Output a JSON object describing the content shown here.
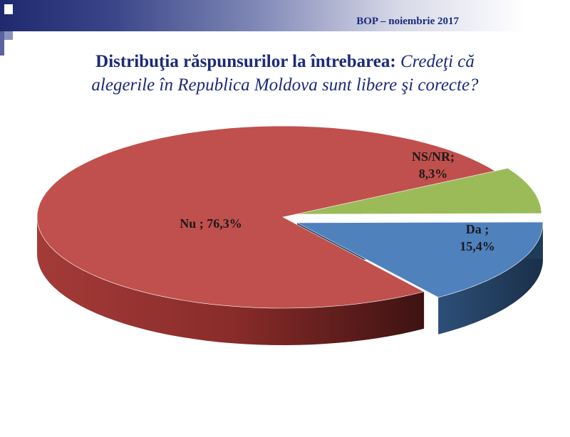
{
  "header": {
    "tag": "BOP – noiembrie 2017"
  },
  "title": {
    "bold": "Distribuţia răspunsurilor la întrebarea:",
    "italic_line1": "Credeţi că",
    "italic_line2": "alegerile în Republica Moldova sunt libere şi corecte?"
  },
  "colors": {
    "header_dark": "#1f2a6e",
    "title_text": "#1c2a7a"
  },
  "chart_data": {
    "type": "pie",
    "style": "3d-exploded",
    "slices": [
      {
        "name": "Nu",
        "label_line1": "Nu ; 76,3%",
        "label_line2": "",
        "value": 76.3,
        "color": "#c0504d",
        "side": "#6b1f1f"
      },
      {
        "name": "Da",
        "label_line1": "Da ;",
        "label_line2": "15,4%",
        "value": 15.4,
        "color": "#4f81bd",
        "side": "#1f3b5a"
      },
      {
        "name": "NS/NR",
        "label_line1": "NS/NR;",
        "label_line2": "8,3%",
        "value": 8.3,
        "color": "#9bbb59",
        "side": "#4e6a25"
      }
    ]
  }
}
